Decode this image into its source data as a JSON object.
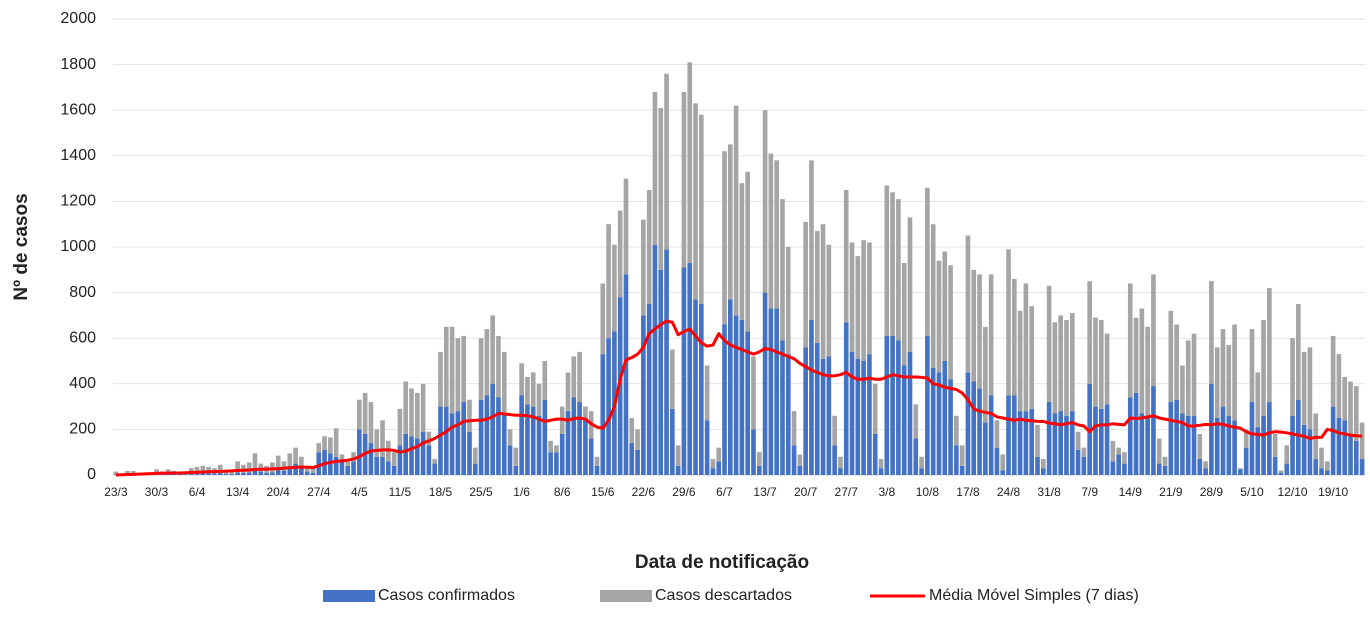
{
  "chart_data": {
    "type": "bar",
    "stacked": true,
    "grid": true,
    "legend": "bottom",
    "xlabel": "Data de notificação",
    "ylabel": "Nº de casos",
    "ylim": [
      0,
      2000
    ],
    "yticks": [
      0,
      200,
      400,
      600,
      800,
      1000,
      1200,
      1400,
      1600,
      1800,
      2000
    ],
    "categories": [
      "23/3",
      null,
      null,
      null,
      null,
      null,
      null,
      "30/3",
      null,
      null,
      null,
      null,
      null,
      null,
      "6/4",
      null,
      null,
      null,
      null,
      null,
      null,
      "13/4",
      null,
      null,
      null,
      null,
      null,
      null,
      "20/4",
      null,
      null,
      null,
      null,
      null,
      null,
      "27/4",
      null,
      null,
      null,
      null,
      null,
      null,
      "4/5",
      null,
      null,
      null,
      null,
      null,
      null,
      "11/5",
      null,
      null,
      null,
      null,
      null,
      null,
      "18/5",
      null,
      null,
      null,
      null,
      null,
      null,
      "25/5",
      null,
      null,
      null,
      null,
      null,
      null,
      "1/6",
      null,
      null,
      null,
      null,
      null,
      null,
      "8/6",
      null,
      null,
      null,
      null,
      null,
      null,
      "15/6",
      null,
      null,
      null,
      null,
      null,
      null,
      "22/6",
      null,
      null,
      null,
      null,
      null,
      null,
      "29/6",
      null,
      null,
      null,
      null,
      null,
      null,
      "6/7",
      null,
      null,
      null,
      null,
      null,
      null,
      "13/7",
      null,
      null,
      null,
      null,
      null,
      null,
      "20/7",
      null,
      null,
      null,
      null,
      null,
      null,
      "27/7",
      null,
      null,
      null,
      null,
      null,
      null,
      "3/8",
      null,
      null,
      null,
      null,
      null,
      null,
      "10/8",
      null,
      null,
      null,
      null,
      null,
      null,
      "17/8",
      null,
      null,
      null,
      null,
      null,
      null,
      "24/8",
      null,
      null,
      null,
      null,
      null,
      null,
      "31/8",
      null,
      null,
      null,
      null,
      null,
      null,
      "7/9",
      null,
      null,
      null,
      null,
      null,
      null,
      "14/9",
      null,
      null,
      null,
      null,
      null,
      null,
      "21/9",
      null,
      null,
      null,
      null,
      null,
      null,
      "28/9",
      null,
      null,
      null,
      null,
      null,
      null,
      "5/10",
      null,
      null,
      null,
      null,
      null,
      null,
      "12/10",
      null,
      null,
      null,
      null,
      null,
      null,
      "19/10",
      null,
      null,
      null,
      null,
      null
    ],
    "series": [
      {
        "name": "Casos confirmados",
        "color": "#4472c4",
        "values": [
          3,
          2,
          5,
          5,
          3,
          2,
          2,
          5,
          4,
          6,
          5,
          3,
          2,
          6,
          8,
          10,
          8,
          7,
          10,
          5,
          4,
          12,
          10,
          12,
          20,
          15,
          10,
          12,
          25,
          20,
          35,
          50,
          30,
          15,
          10,
          100,
          110,
          95,
          80,
          60,
          40,
          60,
          200,
          180,
          140,
          80,
          80,
          60,
          40,
          130,
          180,
          170,
          160,
          190,
          130,
          50,
          300,
          300,
          270,
          280,
          320,
          190,
          50,
          330,
          350,
          400,
          340,
          270,
          130,
          40,
          350,
          310,
          300,
          260,
          330,
          100,
          100,
          180,
          280,
          340,
          320,
          250,
          160,
          40,
          530,
          600,
          630,
          780,
          880,
          140,
          110,
          700,
          750,
          1010,
          900,
          990,
          290,
          40,
          910,
          930,
          770,
          750,
          240,
          30,
          60,
          660,
          770,
          700,
          680,
          630,
          200,
          40,
          800,
          730,
          730,
          590,
          530,
          130,
          40,
          560,
          680,
          580,
          510,
          520,
          130,
          30,
          670,
          540,
          510,
          500,
          530,
          180,
          30,
          610,
          610,
          590,
          480,
          540,
          160,
          30,
          610,
          470,
          450,
          500,
          420,
          130,
          40,
          450,
          410,
          380,
          230,
          350,
          120,
          20,
          350,
          350,
          280,
          280,
          290,
          80,
          30,
          320,
          270,
          280,
          260,
          280,
          110,
          80,
          400,
          300,
          290,
          310,
          60,
          90,
          50,
          340,
          360,
          270,
          250,
          390,
          50,
          40,
          320,
          330,
          270,
          260,
          260,
          70,
          30,
          400,
          250,
          300,
          260,
          240,
          25,
          120,
          320,
          210,
          260,
          320,
          80,
          10,
          50,
          260,
          330,
          220,
          200,
          70,
          30,
          20,
          300,
          250,
          240,
          180,
          150,
          70
        ]
      },
      {
        "name": "Casos descartados",
        "color": "#a5a5a5",
        "values": [
          12,
          3,
          13,
          13,
          7,
          3,
          6,
          20,
          11,
          19,
          13,
          9,
          6,
          24,
          27,
          30,
          27,
          23,
          35,
          15,
          11,
          48,
          35,
          43,
          75,
          35,
          30,
          43,
          60,
          40,
          60,
          70,
          50,
          25,
          20,
          40,
          60,
          70,
          125,
          30,
          30,
          40,
          130,
          180,
          180,
          120,
          160,
          90,
          60,
          160,
          230,
          210,
          200,
          210,
          60,
          20,
          240,
          350,
          380,
          320,
          290,
          140,
          70,
          270,
          290,
          300,
          270,
          270,
          70,
          80,
          140,
          120,
          150,
          140,
          170,
          50,
          30,
          120,
          170,
          180,
          220,
          50,
          120,
          40,
          310,
          500,
          380,
          380,
          420,
          110,
          90,
          420,
          500,
          670,
          710,
          770,
          260,
          90,
          770,
          880,
          860,
          830,
          240,
          40,
          60,
          760,
          680,
          920,
          600,
          700,
          320,
          60,
          800,
          680,
          650,
          620,
          470,
          150,
          50,
          550,
          700,
          490,
          590,
          490,
          130,
          50,
          580,
          480,
          450,
          530,
          490,
          220,
          40,
          660,
          630,
          620,
          450,
          590,
          150,
          50,
          650,
          630,
          490,
          480,
          500,
          130,
          90,
          600,
          490,
          500,
          420,
          530,
          120,
          70,
          640,
          510,
          440,
          560,
          450,
          140,
          40,
          510,
          400,
          420,
          420,
          430,
          80,
          40,
          450,
          390,
          390,
          310,
          90,
          30,
          50,
          500,
          330,
          460,
          400,
          490,
          110,
          40,
          400,
          330,
          210,
          330,
          360,
          110,
          30,
          450,
          310,
          340,
          310,
          420,
          5,
          80,
          320,
          240,
          420,
          500,
          100,
          10,
          80,
          340,
          420,
          320,
          360,
          200,
          90,
          40,
          310,
          280,
          190,
          230,
          240,
          160
        ]
      },
      {
        "name": "Média Móvel Simples (7 dias)",
        "color": "#ff0000",
        "type": "line",
        "values": [
          0,
          1,
          2,
          3,
          4,
          5,
          6,
          7,
          8,
          8,
          9,
          9,
          10,
          11,
          12,
          13,
          14,
          15,
          16,
          17,
          18,
          20,
          21,
          22,
          24,
          25,
          26,
          27,
          28,
          30,
          32,
          34,
          35,
          34,
          33,
          40,
          50,
          55,
          60,
          62,
          65,
          70,
          80,
          95,
          105,
          108,
          110,
          110,
          108,
          100,
          105,
          115,
          125,
          140,
          150,
          160,
          175,
          190,
          210,
          220,
          235,
          238,
          240,
          240,
          245,
          255,
          270,
          268,
          265,
          262,
          262,
          260,
          255,
          245,
          235,
          240,
          245,
          245,
          240,
          248,
          250,
          245,
          225,
          210,
          205,
          240,
          300,
          420,
          505,
          515,
          530,
          560,
          620,
          640,
          660,
          675,
          670,
          615,
          630,
          640,
          610,
          580,
          565,
          570,
          620,
          590,
          570,
          560,
          550,
          540,
          530,
          540,
          555,
          550,
          540,
          530,
          520,
          510,
          490,
          475,
          460,
          450,
          440,
          435,
          435,
          440,
          450,
          430,
          420,
          420,
          425,
          420,
          420,
          430,
          440,
          435,
          430,
          430,
          430,
          428,
          425,
          400,
          395,
          385,
          380,
          375,
          360,
          330,
          290,
          280,
          275,
          270,
          255,
          250,
          245,
          240,
          245,
          240,
          238,
          235,
          235,
          228,
          225,
          220,
          225,
          230,
          220,
          215,
          190,
          215,
          220,
          220,
          225,
          222,
          220,
          250,
          248,
          250,
          255,
          260,
          250,
          245,
          240,
          235,
          230,
          215,
          215,
          218,
          222,
          220,
          225,
          222,
          215,
          210,
          205,
          190,
          180,
          178,
          175,
          185,
          190,
          188,
          185,
          180,
          175,
          170,
          160,
          165,
          165,
          200,
          195,
          185,
          180,
          175,
          172,
          170
        ]
      }
    ]
  }
}
